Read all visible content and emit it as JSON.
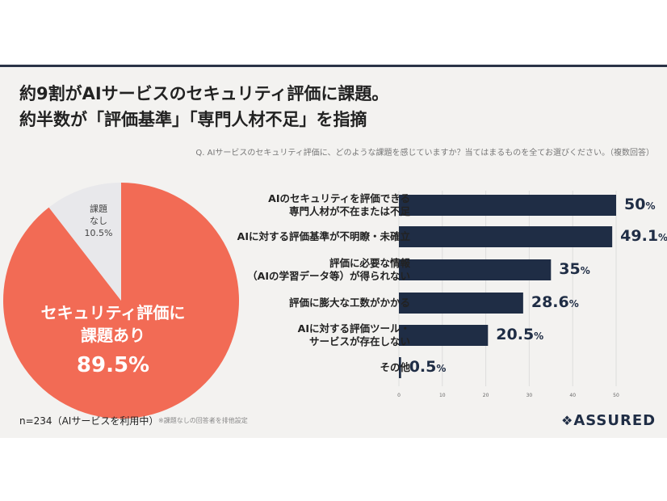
{
  "title_line1": "約9割がAIサービスのセキュリティ評価に課題。",
  "title_line2": "約半数が「評価基準」「専門人材不足」を指摘",
  "question": "Q. AIサービスのセキュリティ評価に、どのような課題を感じていますか？当てはまるものを全てお選びください。（複数回答）",
  "footer": {
    "n": "n=234（AIサービスを利用中）",
    "note": "※課題なしの回答者を排他設定",
    "logo": "ASSURED"
  },
  "colors": {
    "bar": "#1f2d45",
    "pie_main": "#f26b55",
    "pie_other": "#e8e8eb",
    "accent_line": "#2a3347"
  },
  "chart_data": [
    {
      "type": "pie",
      "slices": [
        {
          "label_lines": [
            "セキュリティ評価に",
            "課題あり"
          ],
          "value": 89.5,
          "value_label": "89.5%"
        },
        {
          "label_lines": [
            "課題",
            "なし"
          ],
          "value": 10.5,
          "value_label": "10.5%"
        }
      ]
    },
    {
      "type": "bar",
      "orientation": "horizontal",
      "categories": [
        [
          "AIのセキュリティを評価できる",
          "専門人材が不在または不足"
        ],
        [
          "AIに対する評価基準が不明瞭・未確立"
        ],
        [
          "評価に必要な情報",
          "（AIの学習データ等）が得られない"
        ],
        [
          "評価に膨大な工数がかかる"
        ],
        [
          "AIに対する評価ツール・",
          "サービスが存在しない"
        ],
        [
          "その他"
        ]
      ],
      "values": [
        50,
        49.1,
        35,
        28.6,
        20.5,
        0.5
      ],
      "value_labels": [
        "50",
        "49.1",
        "35",
        "28.6",
        "20.5",
        "0.5"
      ],
      "unit": "%",
      "xlim": [
        0,
        50
      ],
      "xticks": [
        0,
        10,
        20,
        30,
        40,
        50
      ],
      "grid": true
    }
  ]
}
